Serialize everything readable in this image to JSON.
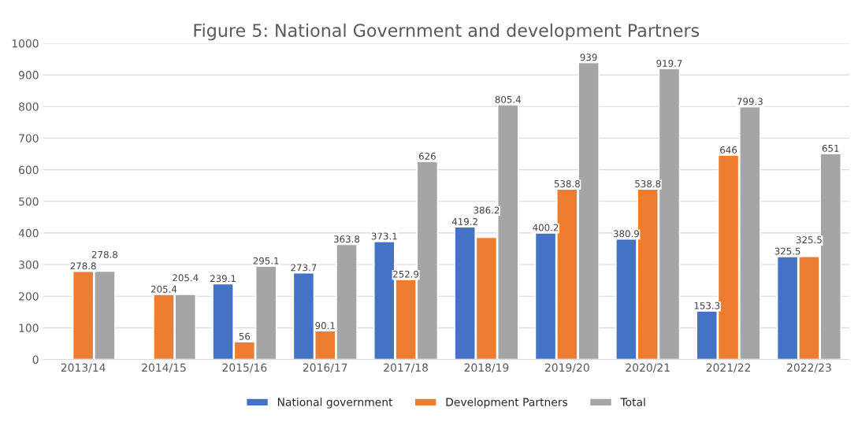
{
  "chart_data": {
    "type": "bar",
    "title": "Figure 5: National Government and development Partners",
    "categories": [
      "2013/14",
      "2014/15",
      "2015/16",
      "2016/17",
      "2017/18",
      "2018/19",
      "2019/20",
      "2020/21",
      "2021/22",
      "2022/23"
    ],
    "series": [
      {
        "name": "National government",
        "color": "#4472c4",
        "values": [
          null,
          null,
          239.1,
          273.7,
          373.1,
          419.2,
          400.2,
          380.9,
          153.3,
          325.5
        ]
      },
      {
        "name": "Development Partners",
        "color": "#ed7d31",
        "values": [
          278.8,
          205.4,
          56,
          90.1,
          252.9,
          386.2,
          538.8,
          538.8,
          646,
          325.5
        ]
      },
      {
        "name": "Total",
        "color": "#a5a5a5",
        "values": [
          278.8,
          205.4,
          295.1,
          363.8,
          626,
          805.4,
          939,
          919.7,
          799.3,
          651
        ]
      }
    ],
    "ylim": [
      0,
      1000
    ],
    "yticks": [
      0,
      100,
      200,
      300,
      400,
      500,
      600,
      700,
      800,
      900,
      1000
    ],
    "grid": "y",
    "legend": "bottom",
    "data_labels": true
  }
}
